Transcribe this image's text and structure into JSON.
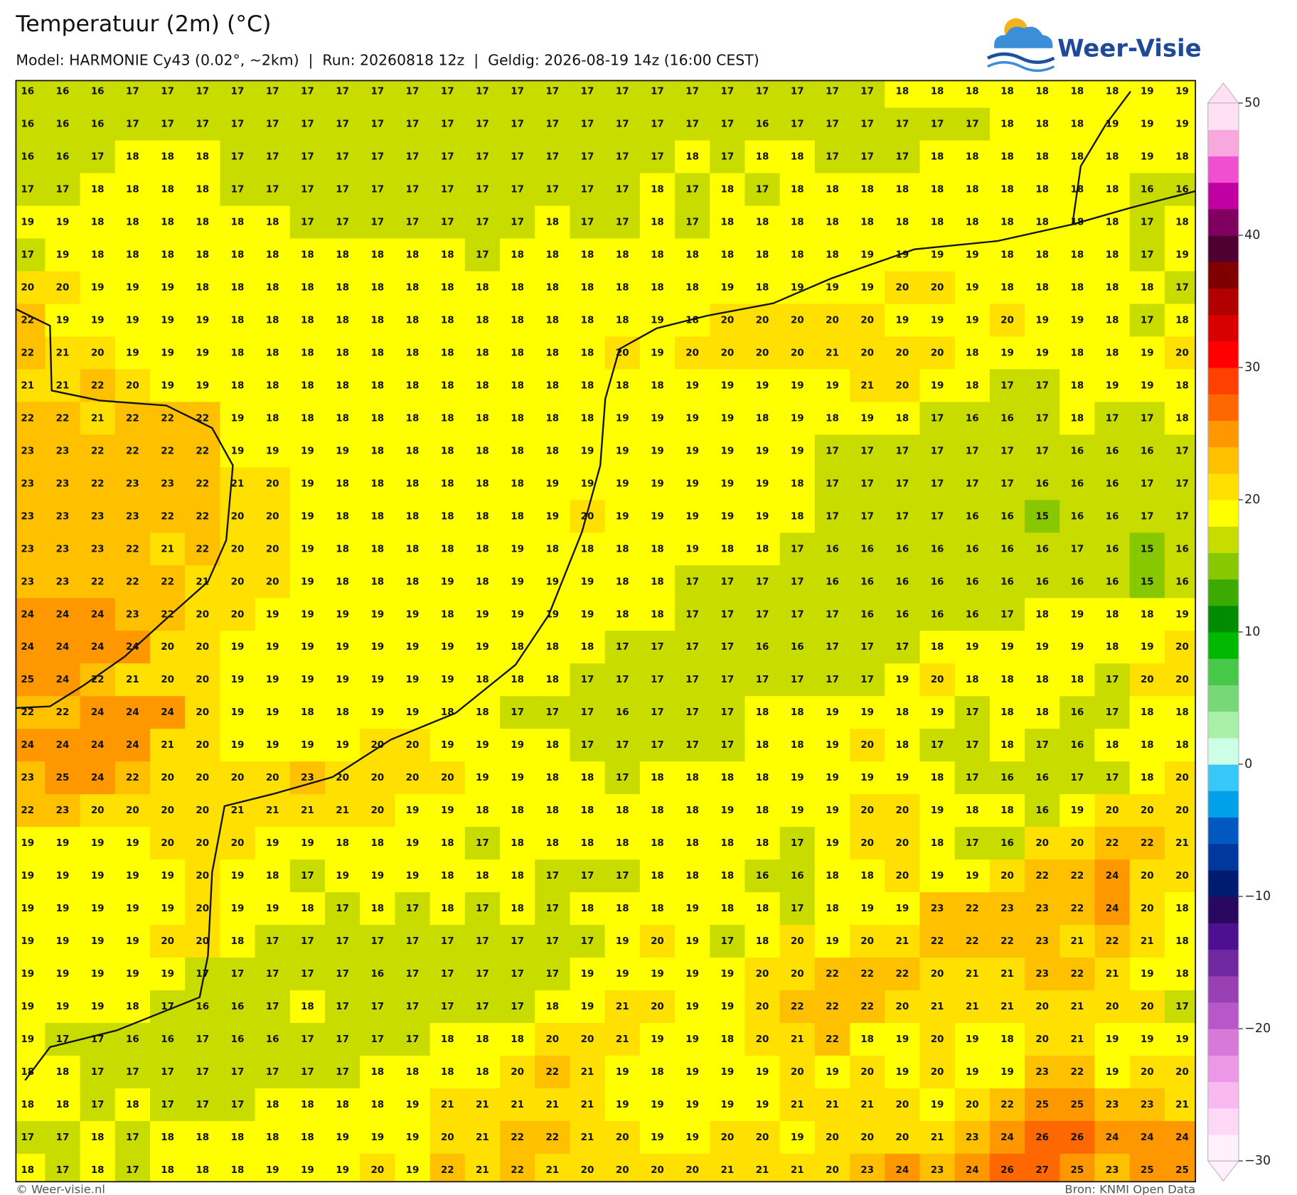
{
  "header": {
    "title": "Temperatuur (2m) (°C)",
    "subtitle": "Model: HARMONIE Cy43 (0.02°, ~2km)  |  Run: 20260818 12z  |  Geldig: 2026-08-19 14z (16:00 CEST)"
  },
  "logo": {
    "text": "Weer-Visie"
  },
  "map": {
    "values": [
      [
        16,
        16,
        16,
        17,
        17,
        17,
        17,
        17,
        17,
        17,
        17,
        17,
        17,
        17,
        17,
        17,
        17,
        17,
        17,
        17,
        17,
        17,
        17,
        17,
        17,
        18,
        18,
        18,
        18,
        18,
        18,
        18,
        19,
        19
      ],
      [
        16,
        16,
        16,
        17,
        17,
        17,
        17,
        17,
        17,
        17,
        17,
        17,
        17,
        17,
        17,
        17,
        17,
        17,
        17,
        17,
        17,
        16,
        17,
        17,
        17,
        17,
        17,
        17,
        18,
        18,
        18,
        19,
        19,
        19
      ],
      [
        16,
        16,
        17,
        18,
        18,
        18,
        17,
        17,
        17,
        17,
        17,
        17,
        17,
        17,
        17,
        17,
        17,
        17,
        17,
        18,
        17,
        18,
        18,
        17,
        17,
        17,
        18,
        18,
        18,
        18,
        18,
        18,
        19,
        18
      ],
      [
        17,
        17,
        18,
        18,
        18,
        18,
        17,
        17,
        17,
        17,
        17,
        17,
        17,
        17,
        17,
        17,
        17,
        17,
        18,
        17,
        18,
        17,
        18,
        18,
        18,
        18,
        18,
        18,
        18,
        18,
        18,
        18,
        16,
        16
      ],
      [
        19,
        19,
        18,
        18,
        18,
        18,
        18,
        18,
        17,
        17,
        17,
        17,
        17,
        17,
        17,
        18,
        17,
        17,
        18,
        17,
        18,
        18,
        18,
        18,
        18,
        18,
        18,
        18,
        18,
        18,
        18,
        18,
        17,
        18
      ],
      [
        17,
        19,
        18,
        18,
        18,
        18,
        18,
        18,
        18,
        18,
        18,
        18,
        18,
        17,
        18,
        18,
        18,
        18,
        18,
        18,
        18,
        18,
        18,
        18,
        19,
        19,
        19,
        19,
        18,
        18,
        18,
        18,
        17,
        19
      ],
      [
        20,
        20,
        19,
        19,
        19,
        18,
        18,
        18,
        18,
        18,
        18,
        18,
        18,
        18,
        18,
        18,
        18,
        18,
        18,
        18,
        19,
        18,
        19,
        19,
        19,
        20,
        20,
        19,
        18,
        18,
        18,
        18,
        18,
        17
      ],
      [
        22,
        19,
        19,
        19,
        19,
        19,
        18,
        18,
        18,
        18,
        18,
        18,
        18,
        18,
        18,
        18,
        18,
        18,
        19,
        18,
        20,
        20,
        20,
        20,
        20,
        19,
        19,
        19,
        20,
        19,
        19,
        18,
        17,
        18
      ],
      [
        22,
        21,
        20,
        19,
        19,
        19,
        18,
        18,
        18,
        18,
        18,
        18,
        18,
        18,
        18,
        18,
        18,
        20,
        19,
        20,
        20,
        20,
        20,
        21,
        20,
        20,
        20,
        18,
        19,
        19,
        18,
        18,
        19,
        20
      ],
      [
        21,
        21,
        22,
        20,
        19,
        19,
        18,
        18,
        18,
        18,
        18,
        18,
        18,
        18,
        18,
        18,
        18,
        18,
        18,
        19,
        19,
        19,
        19,
        19,
        21,
        20,
        19,
        18,
        17,
        17,
        18,
        19,
        19,
        18
      ],
      [
        22,
        22,
        21,
        22,
        22,
        22,
        19,
        18,
        18,
        18,
        18,
        18,
        18,
        18,
        18,
        18,
        18,
        19,
        19,
        19,
        19,
        18,
        19,
        18,
        19,
        18,
        17,
        16,
        16,
        17,
        18,
        17,
        17,
        18
      ],
      [
        23,
        23,
        22,
        22,
        22,
        22,
        19,
        19,
        19,
        19,
        18,
        18,
        18,
        18,
        18,
        18,
        19,
        19,
        19,
        19,
        19,
        19,
        19,
        17,
        17,
        17,
        17,
        17,
        17,
        17,
        16,
        16,
        16,
        17
      ],
      [
        23,
        23,
        22,
        23,
        23,
        22,
        21,
        20,
        19,
        18,
        18,
        18,
        18,
        18,
        18,
        19,
        19,
        19,
        19,
        19,
        19,
        19,
        18,
        17,
        17,
        17,
        17,
        17,
        17,
        16,
        16,
        16,
        17,
        17
      ],
      [
        23,
        23,
        23,
        23,
        22,
        22,
        20,
        20,
        19,
        18,
        18,
        18,
        18,
        18,
        18,
        19,
        20,
        19,
        19,
        19,
        19,
        19,
        18,
        17,
        17,
        17,
        17,
        16,
        16,
        15,
        16,
        16,
        17,
        17
      ],
      [
        23,
        23,
        23,
        22,
        21,
        22,
        20,
        20,
        19,
        18,
        18,
        18,
        18,
        18,
        19,
        18,
        18,
        18,
        18,
        19,
        18,
        18,
        17,
        16,
        16,
        16,
        16,
        16,
        16,
        16,
        17,
        16,
        15,
        16
      ],
      [
        23,
        23,
        22,
        22,
        22,
        21,
        20,
        20,
        19,
        18,
        18,
        18,
        19,
        18,
        19,
        19,
        19,
        18,
        18,
        17,
        17,
        17,
        17,
        16,
        16,
        16,
        16,
        16,
        16,
        16,
        16,
        16,
        15,
        16
      ],
      [
        24,
        24,
        24,
        23,
        22,
        20,
        20,
        19,
        19,
        19,
        19,
        19,
        18,
        19,
        19,
        19,
        19,
        18,
        18,
        17,
        17,
        17,
        17,
        17,
        16,
        16,
        16,
        16,
        17,
        18,
        19,
        18,
        18,
        19
      ],
      [
        24,
        24,
        24,
        24,
        20,
        20,
        19,
        19,
        19,
        19,
        19,
        19,
        19,
        19,
        18,
        18,
        18,
        17,
        17,
        17,
        17,
        16,
        16,
        17,
        17,
        17,
        18,
        19,
        19,
        19,
        19,
        18,
        19,
        20
      ],
      [
        25,
        24,
        22,
        21,
        20,
        20,
        19,
        19,
        19,
        19,
        19,
        19,
        19,
        18,
        18,
        18,
        17,
        17,
        17,
        17,
        17,
        17,
        17,
        17,
        17,
        19,
        20,
        18,
        18,
        18,
        18,
        17,
        20,
        20
      ],
      [
        22,
        22,
        24,
        24,
        24,
        20,
        19,
        19,
        18,
        18,
        19,
        19,
        18,
        18,
        17,
        17,
        17,
        16,
        17,
        17,
        17,
        18,
        18,
        19,
        19,
        18,
        19,
        17,
        18,
        18,
        16,
        17,
        18,
        18
      ],
      [
        24,
        24,
        24,
        24,
        21,
        20,
        19,
        19,
        19,
        19,
        20,
        20,
        19,
        19,
        19,
        18,
        17,
        17,
        17,
        17,
        17,
        18,
        18,
        19,
        20,
        18,
        17,
        17,
        18,
        17,
        16,
        18,
        18,
        18
      ],
      [
        23,
        25,
        24,
        22,
        20,
        20,
        20,
        20,
        23,
        20,
        20,
        20,
        20,
        19,
        19,
        18,
        18,
        17,
        18,
        18,
        18,
        18,
        19,
        19,
        19,
        19,
        18,
        17,
        16,
        16,
        17,
        17,
        18,
        20
      ],
      [
        22,
        23,
        20,
        20,
        20,
        20,
        21,
        21,
        21,
        21,
        20,
        19,
        19,
        18,
        18,
        18,
        18,
        18,
        18,
        18,
        19,
        18,
        19,
        19,
        20,
        20,
        19,
        18,
        18,
        16,
        19,
        20,
        20,
        20
      ],
      [
        19,
        19,
        19,
        19,
        20,
        20,
        20,
        19,
        19,
        18,
        18,
        19,
        18,
        17,
        18,
        18,
        18,
        18,
        18,
        18,
        18,
        18,
        17,
        19,
        20,
        20,
        18,
        17,
        16,
        20,
        20,
        22,
        22,
        21
      ],
      [
        19,
        19,
        19,
        19,
        19,
        20,
        19,
        18,
        17,
        19,
        19,
        19,
        18,
        18,
        18,
        17,
        17,
        17,
        18,
        18,
        18,
        16,
        16,
        18,
        18,
        20,
        19,
        19,
        20,
        22,
        22,
        24,
        20,
        20
      ],
      [
        19,
        19,
        19,
        19,
        19,
        20,
        19,
        19,
        18,
        17,
        18,
        17,
        18,
        17,
        18,
        17,
        18,
        18,
        18,
        19,
        18,
        18,
        17,
        18,
        19,
        19,
        23,
        22,
        23,
        23,
        22,
        24,
        20,
        18
      ],
      [
        19,
        19,
        19,
        19,
        20,
        20,
        18,
        17,
        17,
        17,
        17,
        17,
        17,
        17,
        17,
        17,
        17,
        19,
        20,
        19,
        17,
        18,
        20,
        19,
        20,
        21,
        22,
        22,
        22,
        23,
        21,
        22,
        21,
        18
      ],
      [
        19,
        19,
        19,
        19,
        19,
        17,
        17,
        17,
        17,
        17,
        16,
        17,
        17,
        17,
        17,
        17,
        19,
        19,
        19,
        19,
        19,
        20,
        20,
        22,
        22,
        22,
        20,
        21,
        21,
        23,
        22,
        21,
        19,
        18
      ],
      [
        19,
        19,
        19,
        18,
        17,
        16,
        16,
        17,
        18,
        17,
        17,
        17,
        17,
        17,
        17,
        18,
        19,
        21,
        20,
        19,
        19,
        20,
        22,
        22,
        22,
        20,
        21,
        21,
        21,
        20,
        21,
        20,
        20,
        17
      ],
      [
        19,
        17,
        17,
        16,
        16,
        17,
        16,
        16,
        17,
        17,
        17,
        17,
        18,
        18,
        18,
        20,
        20,
        21,
        19,
        19,
        18,
        20,
        21,
        22,
        18,
        19,
        20,
        19,
        18,
        20,
        21,
        19,
        19,
        19
      ],
      [
        18,
        18,
        17,
        17,
        17,
        17,
        17,
        17,
        17,
        17,
        18,
        18,
        18,
        18,
        20,
        22,
        21,
        19,
        18,
        19,
        19,
        19,
        20,
        19,
        20,
        19,
        20,
        19,
        19,
        23,
        22,
        19,
        20,
        20
      ],
      [
        18,
        18,
        17,
        18,
        17,
        17,
        17,
        18,
        18,
        18,
        18,
        19,
        21,
        21,
        21,
        21,
        21,
        19,
        19,
        19,
        19,
        19,
        21,
        21,
        21,
        20,
        19,
        20,
        22,
        25,
        25,
        23,
        23,
        21
      ],
      [
        17,
        17,
        18,
        17,
        18,
        18,
        18,
        18,
        18,
        19,
        19,
        19,
        20,
        21,
        22,
        22,
        21,
        20,
        19,
        19,
        20,
        20,
        19,
        20,
        20,
        20,
        21,
        23,
        24,
        26,
        26,
        24,
        24,
        24
      ],
      [
        18,
        17,
        18,
        17,
        18,
        18,
        18,
        19,
        19,
        19,
        20,
        19,
        22,
        21,
        22,
        21,
        20,
        20,
        20,
        20,
        21,
        21,
        21,
        20,
        23,
        24,
        23,
        24,
        26,
        27,
        25,
        23,
        25,
        25
      ]
    ]
  },
  "colorbar": {
    "lim": [
      -30,
      50
    ],
    "ticks": [
      {
        "value": -30,
        "label": "−30"
      },
      {
        "value": -20,
        "label": "−20"
      },
      {
        "value": -10,
        "label": "−10"
      },
      0,
      10,
      20,
      30,
      40,
      50
    ],
    "colors": [
      "#fff0fc",
      "#ffd8f8",
      "#f8b8f0",
      "#ec98e6",
      "#d878d8",
      "#b858c8",
      "#9840b4",
      "#7028a0",
      "#4c1090",
      "#2a0860",
      "#001c70",
      "#0038a0",
      "#0058c0",
      "#00a0e8",
      "#38c8f8",
      "#ccffe6",
      "#a8f0a8",
      "#78d878",
      "#48c848",
      "#00b800",
      "#008c00",
      "#3caa00",
      "#88c800",
      "#c8dc00",
      "#ffff00",
      "#ffe000",
      "#ffc000",
      "#ff9800",
      "#ff6800",
      "#ff4000",
      "#ff0000",
      "#d80000",
      "#b00000",
      "#800000",
      "#500030",
      "#800060",
      "#c000a0",
      "#f050d0",
      "#f8a8dc",
      "#ffe0f4"
    ]
  },
  "footer": {
    "left": "© Weer-visie.nl",
    "right": "Bron: KNMI Open Data"
  }
}
